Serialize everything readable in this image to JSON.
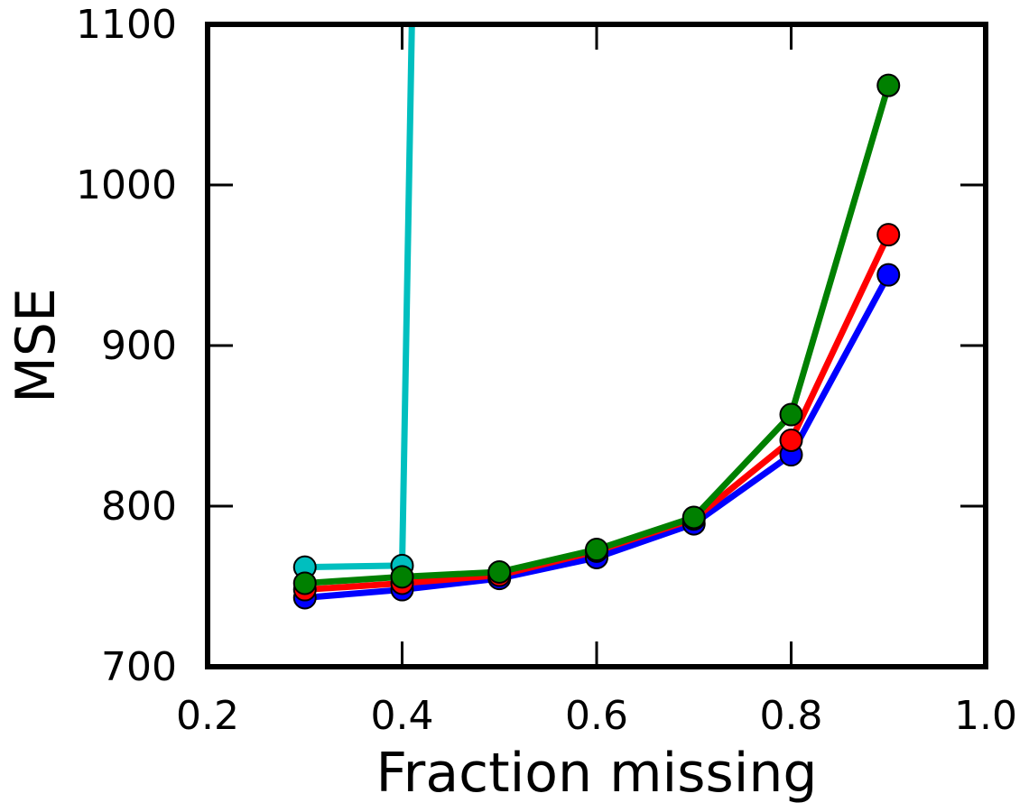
{
  "chart_data": {
    "type": "line",
    "title": "",
    "xlabel": "Fraction missing",
    "ylabel": "MSE",
    "xlim": [
      0.2,
      1.0
    ],
    "ylim": [
      700,
      1100
    ],
    "x_ticks": [
      "0.2",
      "0.4",
      "0.6",
      "0.8",
      "1.0"
    ],
    "y_ticks": [
      "700",
      "800",
      "900",
      "1000",
      "1100"
    ],
    "grid": false,
    "legend": "none",
    "x": [
      0.3,
      0.4,
      0.5,
      0.6,
      0.7,
      0.8,
      0.9
    ],
    "series": [
      {
        "color": "#00bfbf",
        "values": [
          762,
          763,
          1100
        ],
        "x": [
          0.3,
          0.4,
          0.41
        ]
      },
      {
        "color": "#0000ff",
        "values": [
          743,
          748,
          755,
          768,
          789,
          832,
          944
        ]
      },
      {
        "color": "#ff0000",
        "values": [
          748,
          752,
          757,
          772,
          792,
          841,
          969
        ]
      },
      {
        "color": "#008000",
        "values": [
          752,
          756,
          759,
          773,
          793,
          857,
          1062
        ]
      }
    ]
  }
}
